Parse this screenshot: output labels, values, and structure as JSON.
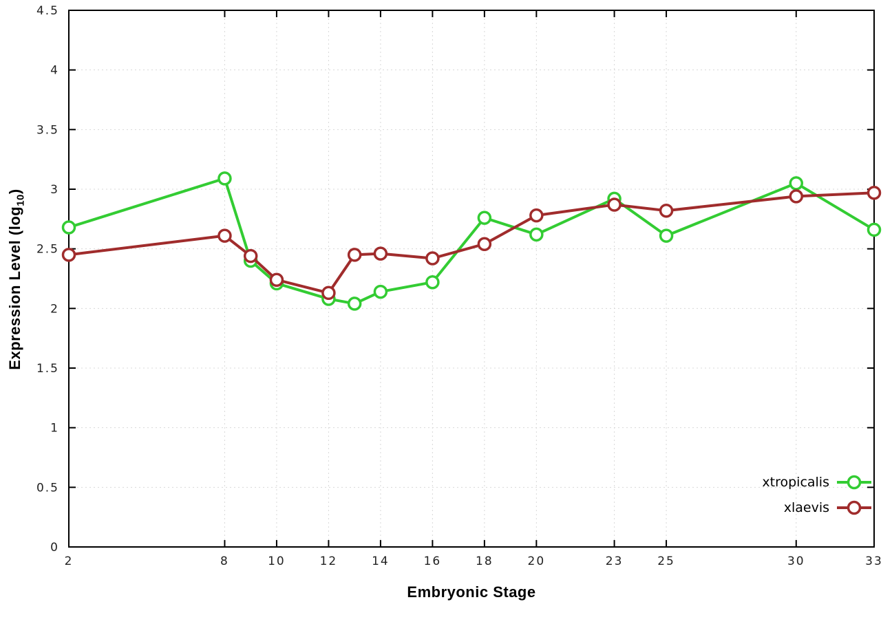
{
  "chart_data": {
    "type": "line",
    "title": "",
    "xlabel": "Embryonic Stage",
    "ylabel": "Expression Level (log10)",
    "ylabel_main": "Expression Level (log",
    "ylabel_sub": "10",
    "ylabel_close": ")",
    "xlim": [
      2,
      33
    ],
    "ylim": [
      0,
      4.5
    ],
    "x_ticks": [
      2,
      8,
      10,
      12,
      14,
      16,
      18,
      20,
      23,
      25,
      30,
      33
    ],
    "y_ticks": [
      0,
      0.5,
      1,
      1.5,
      2,
      2.5,
      3,
      3.5,
      4,
      4.5
    ],
    "grid": true,
    "legend_position": "bottom-right",
    "x": [
      2,
      8,
      9,
      10,
      12,
      13,
      14,
      16,
      18,
      20,
      23,
      25,
      30,
      33
    ],
    "series": [
      {
        "name": "xtropicalis",
        "color": "#33cc33",
        "values": [
          2.68,
          3.09,
          2.4,
          2.21,
          2.08,
          2.04,
          2.14,
          2.22,
          2.76,
          2.62,
          2.92,
          2.61,
          3.05,
          2.66
        ]
      },
      {
        "name": "xlaevis",
        "color": "#a02c2c",
        "values": [
          2.45,
          2.61,
          2.44,
          2.24,
          2.13,
          2.45,
          2.46,
          2.42,
          2.54,
          2.78,
          2.87,
          2.82,
          2.94,
          2.97
        ]
      }
    ],
    "style": {
      "grid_color": "#d8d8d8",
      "border_color": "#000000",
      "tick_label_color": "#222222",
      "background": "#ffffff"
    }
  }
}
